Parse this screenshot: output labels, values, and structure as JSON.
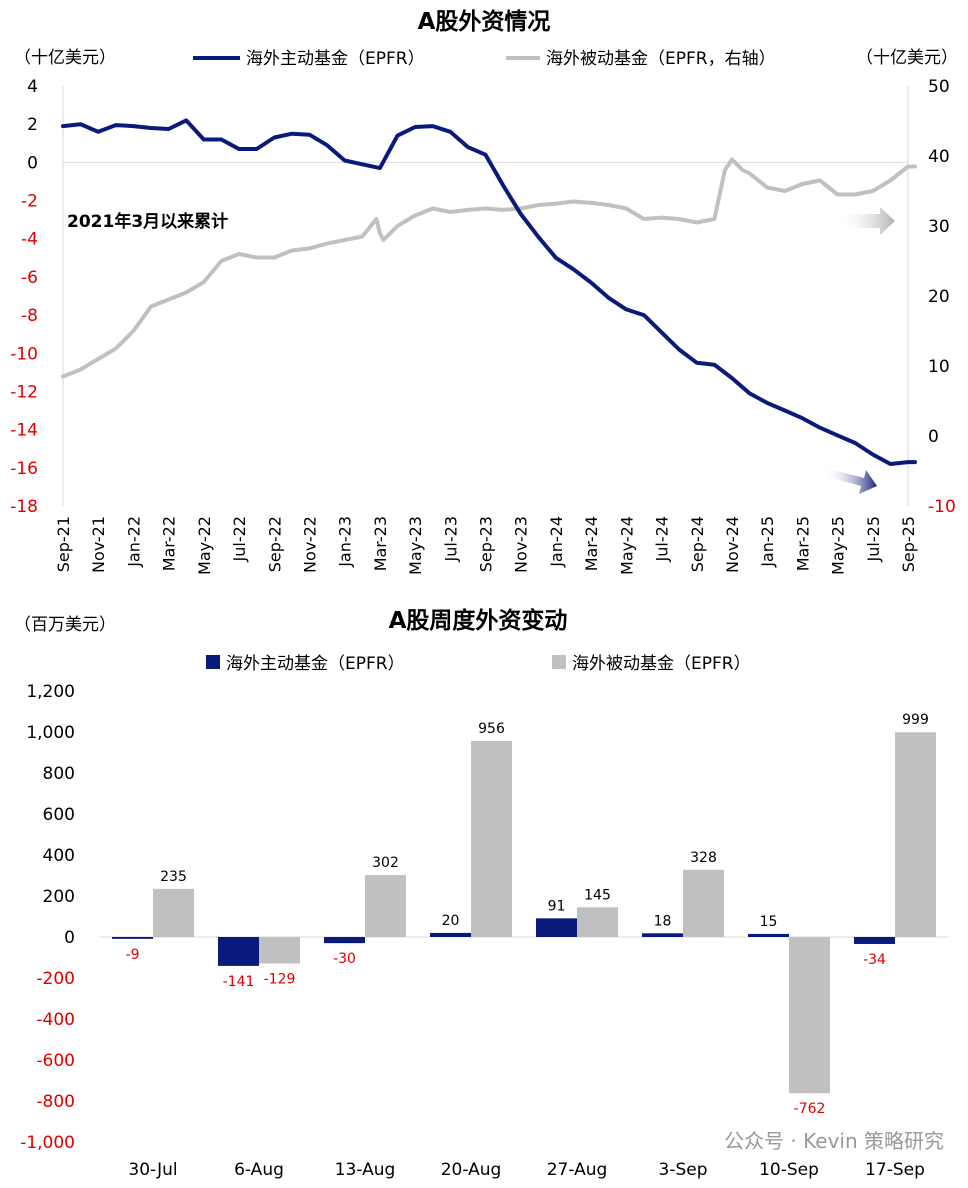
{
  "colors": {
    "active": "#0a1a7a",
    "passive": "#c0c0c0",
    "negative": "#e00000",
    "axis": "#d9d9d9"
  },
  "chart_data": [
    {
      "type": "line",
      "title": "A股外资情况",
      "ylabel": "（十亿美元）",
      "y2label": "（十亿美元）",
      "annotation": "2021年3月以来累计",
      "ylim": [
        -18,
        4
      ],
      "y2lim": [
        -10,
        50
      ],
      "yticks": [
        "4",
        "2",
        "0",
        "-2",
        "-4",
        "-6",
        "-8",
        "-10",
        "-12",
        "-14",
        "-16",
        "-18"
      ],
      "y2ticks": [
        "50",
        "40",
        "30",
        "20",
        "10",
        "0",
        "-10"
      ],
      "xticks": [
        "Sep-21",
        "Nov-21",
        "Jan-22",
        "Mar-22",
        "May-22",
        "Jul-22",
        "Sep-22",
        "Nov-22",
        "Jan-23",
        "Mar-23",
        "May-23",
        "Jul-23",
        "Sep-23",
        "Nov-23",
        "Jan-24",
        "Mar-24",
        "May-24",
        "Jul-24",
        "Sep-24",
        "Nov-24",
        "Jan-25",
        "Mar-25",
        "May-25",
        "Jul-25",
        "Sep-25"
      ],
      "series": [
        {
          "name": "海外主动基金（EPFR）",
          "axis": "left",
          "color": "#0a1a7a",
          "x": [
            0,
            0.5,
            1,
            1.5,
            2,
            2.5,
            3,
            3.5,
            4,
            4.5,
            5,
            5.5,
            6,
            6.5,
            7,
            7.5,
            8,
            8.5,
            9,
            9.5,
            10,
            10.5,
            11,
            11.5,
            12,
            12.5,
            13,
            13.5,
            14,
            14.5,
            15,
            15.5,
            16,
            16.5,
            17,
            17.5,
            18,
            18.5,
            19,
            19.5,
            20,
            20.5,
            21,
            21.5,
            22,
            22.5,
            23,
            23.5,
            24,
            24.2
          ],
          "values": [
            1.9,
            2.0,
            1.6,
            1.95,
            1.9,
            1.8,
            1.75,
            2.2,
            1.2,
            1.2,
            0.7,
            0.7,
            1.3,
            1.5,
            1.45,
            0.9,
            0.1,
            -0.1,
            -0.3,
            1.4,
            1.85,
            1.9,
            1.6,
            0.8,
            0.4,
            -1.2,
            -2.7,
            -3.9,
            -5.0,
            -5.6,
            -6.3,
            -7.1,
            -7.7,
            -8.0,
            -8.9,
            -9.8,
            -10.5,
            -10.6,
            -11.3,
            -12.1,
            -12.6,
            -13.0,
            -13.4,
            -13.9,
            -14.3,
            -14.7,
            -15.3,
            -15.8,
            -15.7,
            -15.7
          ]
        },
        {
          "name": "海外被动基金（EPFR，右轴）",
          "axis": "right",
          "color": "#c0c0c0",
          "x": [
            0,
            0.5,
            1,
            1.5,
            2,
            2.5,
            3,
            3.5,
            4,
            4.5,
            5,
            5.5,
            6,
            6.5,
            7,
            7.5,
            8,
            8.5,
            8.9,
            9,
            9.1,
            9.3,
            9.5,
            10,
            10.5,
            11,
            11.5,
            12,
            12.5,
            13,
            13.5,
            14,
            14.5,
            15,
            15.5,
            16,
            16.5,
            17,
            17.5,
            18,
            18.5,
            18.8,
            19,
            19.3,
            19.5,
            20,
            20.5,
            21,
            21.5,
            22,
            22.5,
            23,
            23.5,
            24,
            24.2
          ],
          "values": [
            8.5,
            9.5,
            11.0,
            12.5,
            15.0,
            18.5,
            19.5,
            20.5,
            22.0,
            25.0,
            26.0,
            25.5,
            25.5,
            26.5,
            26.8,
            27.5,
            28.0,
            28.5,
            31.0,
            29.0,
            28.0,
            29.0,
            30.0,
            31.5,
            32.5,
            32.0,
            32.3,
            32.5,
            32.3,
            32.5,
            33.0,
            33.2,
            33.5,
            33.3,
            33.0,
            32.5,
            31.0,
            31.2,
            31.0,
            30.5,
            31.0,
            38.0,
            39.5,
            38.0,
            37.5,
            35.5,
            35.0,
            36.0,
            36.5,
            34.5,
            34.5,
            35.0,
            36.5,
            38.5,
            38.5
          ]
        }
      ]
    },
    {
      "type": "bar",
      "title": "A股周度外资变动",
      "ylabel": "（百万美元）",
      "ylim": [
        -1000,
        1200
      ],
      "yticks": [
        "1,200",
        "1,000",
        "800",
        "600",
        "400",
        "200",
        "0",
        "-200",
        "-400",
        "-600",
        "-800",
        "-1,000"
      ],
      "categories": [
        "30-Jul",
        "6-Aug",
        "13-Aug",
        "20-Aug",
        "27-Aug",
        "3-Sep",
        "10-Sep",
        "17-Sep"
      ],
      "series": [
        {
          "name": "海外主动基金（EPFR）",
          "color": "#0a1a7a",
          "values": [
            -9,
            -141,
            -30,
            20,
            91,
            18,
            15,
            -34
          ]
        },
        {
          "name": "海外被动基金（EPFR）",
          "color": "#c0c0c0",
          "values": [
            235,
            -129,
            302,
            956,
            145,
            328,
            -762,
            999
          ]
        }
      ]
    }
  ],
  "watermark": "公众号 · Kevin 策略研究"
}
